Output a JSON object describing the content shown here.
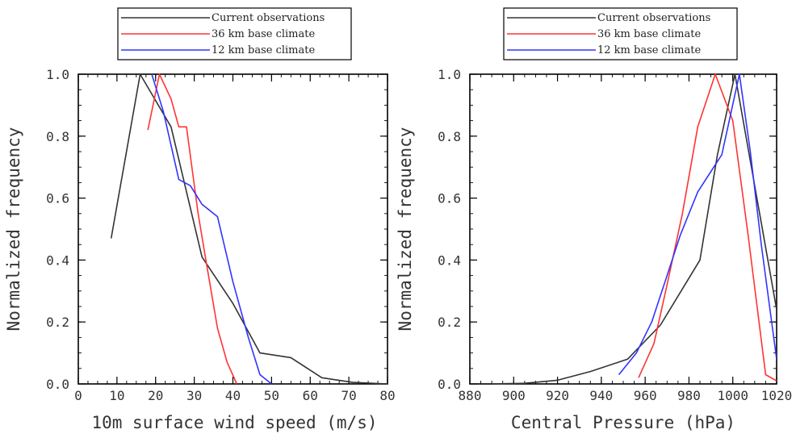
{
  "chart_data": [
    {
      "type": "line",
      "xlabel": "10m surface wind speed (m/s)",
      "ylabel": "Normalized frequency",
      "xlim": [
        0,
        80
      ],
      "ylim": [
        0,
        1
      ],
      "xticks": [
        0,
        10,
        20,
        30,
        40,
        50,
        60,
        70,
        80
      ],
      "yticks": [
        0.0,
        0.2,
        0.4,
        0.6,
        0.8,
        1.0
      ],
      "ytick_labels": [
        "0.0",
        "0.2",
        "0.4",
        "0.6",
        "0.8",
        "1.0"
      ],
      "legend_position": "top-center",
      "series": [
        {
          "name": "Current observations",
          "color": "#333333",
          "points": [
            [
              8.5,
              0.47
            ],
            [
              16,
              1.0
            ],
            [
              24,
              0.83
            ],
            [
              32,
              0.41
            ],
            [
              40,
              0.26
            ],
            [
              47,
              0.1
            ],
            [
              55,
              0.085
            ],
            [
              63,
              0.02
            ],
            [
              71,
              0.005
            ],
            [
              80,
              0.0
            ]
          ]
        },
        {
          "name": "36 km base climate",
          "color": "#ff3333",
          "points": [
            [
              18,
              0.82
            ],
            [
              21,
              1.0
            ],
            [
              24,
              0.92
            ],
            [
              26,
              0.83
            ],
            [
              28,
              0.83
            ],
            [
              31,
              0.55
            ],
            [
              33,
              0.4
            ],
            [
              36,
              0.18
            ],
            [
              38.5,
              0.07
            ],
            [
              41,
              0.0
            ]
          ]
        },
        {
          "name": "12 km base climate",
          "color": "#3333ff",
          "points": [
            [
              19,
              1.0
            ],
            [
              22,
              0.88
            ],
            [
              26,
              0.66
            ],
            [
              29,
              0.64
            ],
            [
              32,
              0.58
            ],
            [
              36,
              0.54
            ],
            [
              40,
              0.33
            ],
            [
              44,
              0.15
            ],
            [
              47,
              0.03
            ],
            [
              50,
              0.0
            ]
          ]
        }
      ]
    },
    {
      "type": "line",
      "xlabel": "Central Pressure (hPa)",
      "ylabel": "Normalized frequency",
      "xlim": [
        880,
        1020
      ],
      "ylim": [
        0,
        1
      ],
      "xticks": [
        880,
        900,
        920,
        940,
        960,
        980,
        1000,
        1020
      ],
      "yticks": [
        0.0,
        0.2,
        0.4,
        0.6,
        0.8,
        1.0
      ],
      "ytick_labels": [
        "0.0",
        "0.2",
        "0.4",
        "0.6",
        "0.8",
        "1.0"
      ],
      "legend_position": "top-center",
      "series": [
        {
          "name": "Current observations",
          "color": "#333333",
          "points": [
            [
              890,
              0.0
            ],
            [
              905,
              0.002
            ],
            [
              920,
              0.012
            ],
            [
              935,
              0.04
            ],
            [
              952,
              0.08
            ],
            [
              967,
              0.19
            ],
            [
              985,
              0.4
            ],
            [
              993,
              0.74
            ],
            [
              1001,
              1.0
            ],
            [
              1008,
              0.72
            ],
            [
              1013,
              0.52
            ],
            [
              1020,
              0.24
            ]
          ]
        },
        {
          "name": "36 km base climate",
          "color": "#ff3333",
          "points": [
            [
              957,
              0.02
            ],
            [
              964,
              0.13
            ],
            [
              970,
              0.32
            ],
            [
              977,
              0.55
            ],
            [
              984,
              0.83
            ],
            [
              992,
              1.0
            ],
            [
              1000,
              0.85
            ],
            [
              1007,
              0.48
            ],
            [
              1015,
              0.03
            ],
            [
              1020,
              0.01
            ]
          ]
        },
        {
          "name": "12 km base climate",
          "color": "#3333ff",
          "points": [
            [
              948,
              0.03
            ],
            [
              956,
              0.1
            ],
            [
              963,
              0.2
            ],
            [
              970,
              0.35
            ],
            [
              976,
              0.48
            ],
            [
              984,
              0.62
            ],
            [
              995,
              0.74
            ],
            [
              1003,
              1.0
            ],
            [
              1008,
              0.75
            ],
            [
              1013,
              0.45
            ],
            [
              1020,
              0.08
            ]
          ]
        }
      ]
    }
  ]
}
